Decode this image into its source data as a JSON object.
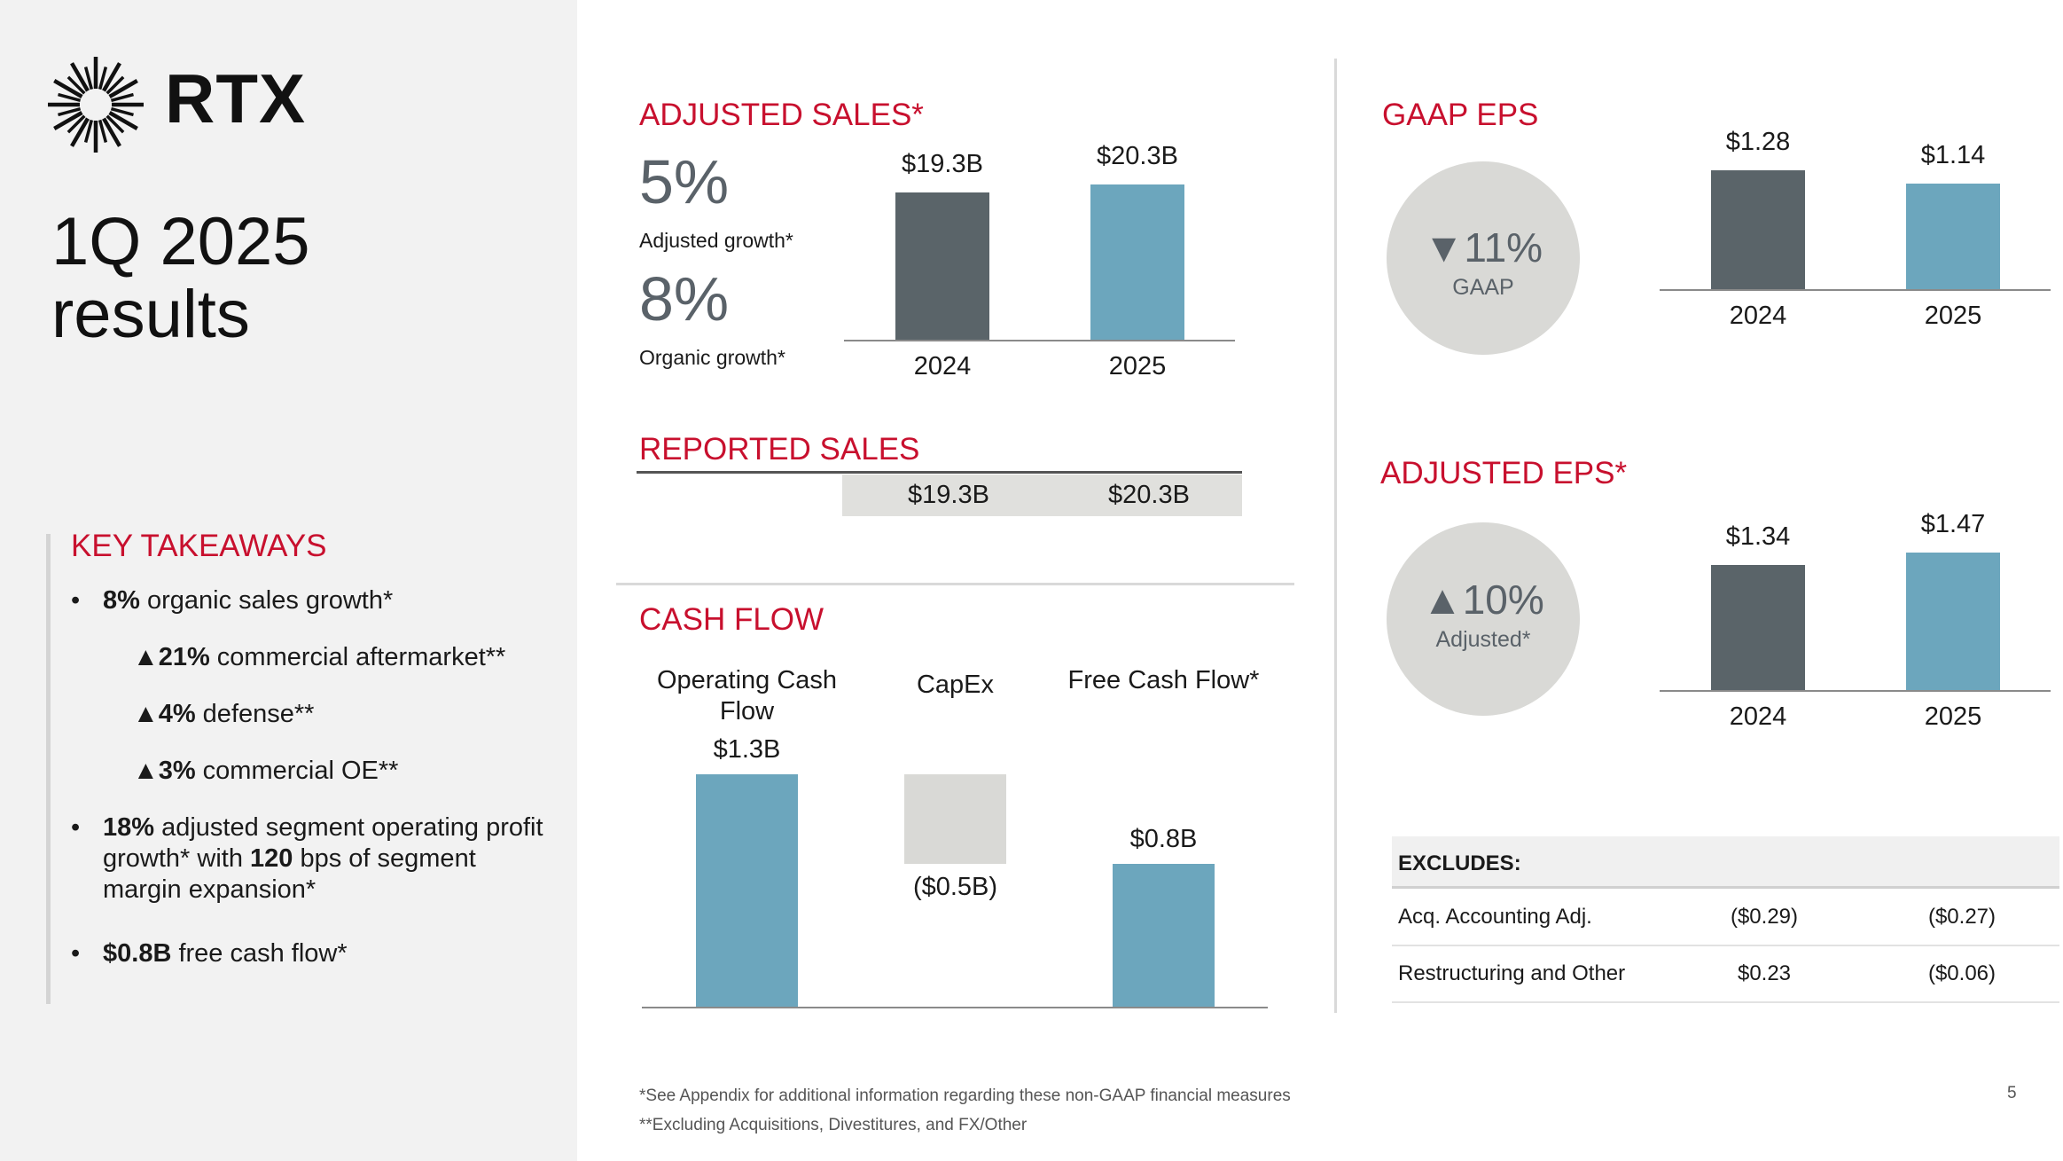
{
  "brand": {
    "logo_text": "RTX",
    "accent": "#c8102e",
    "icon": "rtx-sunburst-icon"
  },
  "title": {
    "line1": "1Q 2025",
    "line2": "results"
  },
  "takeaways": {
    "heading": "KEY TAKEAWAYS",
    "item1": {
      "bold": "8%",
      "rest": " organic sales growth*"
    },
    "sub1": {
      "arrow": "▲",
      "bold": "21%",
      "rest": " commercial aftermarket**"
    },
    "sub2": {
      "arrow": "▲",
      "bold": "4%",
      "rest": " defense**"
    },
    "sub3": {
      "arrow": "▲",
      "bold": "3%",
      "rest": " commercial OE**"
    },
    "item2": {
      "bold1": "18%",
      "mid": " adjusted segment operating profit growth* with ",
      "bold2": "120",
      "rest": " bps of segment margin expansion*"
    },
    "item3": {
      "bold": "$0.8B",
      "rest": " free cash flow*"
    },
    "bullet": "•"
  },
  "adjusted_sales": {
    "heading": "ADJUSTED SALES*",
    "pct1": "5%",
    "pct1_label": "Adjusted growth*",
    "pct2": "8%",
    "pct2_label": "Organic growth*"
  },
  "reported_sales": {
    "heading": "REPORTED SALES",
    "v2024": "$19.3B",
    "v2025": "$20.3B"
  },
  "cash_flow": {
    "heading": "CASH FLOW"
  },
  "gaap_eps": {
    "heading": "GAAP EPS",
    "circle_value": "▼11%",
    "circle_label": "GAAP"
  },
  "adjusted_eps": {
    "heading": "ADJUSTED EPS*",
    "circle_value": "▲10%",
    "circle_label": "Adjusted*"
  },
  "excludes": {
    "heading": "EXCLUDES:",
    "rows": [
      {
        "label": "Acq. Accounting Adj.",
        "v2024": "($0.29)",
        "v2025": "($0.27)"
      },
      {
        "label": "Restructuring and Other",
        "v2024": "$0.23",
        "v2025": "($0.06)"
      }
    ]
  },
  "footnotes": {
    "note1": "*See Appendix for additional information regarding these non-GAAP financial measures",
    "note2": "**Excluding Acquisitions, Divestitures, and FX/Other"
  },
  "page_number": "5",
  "colors": {
    "dark_bar": "#5a6469",
    "blue_bar": "#6ca6bd",
    "capex_bar": "#d9d9d6"
  },
  "chart_data": [
    {
      "type": "bar",
      "title": "ADJUSTED SALES*",
      "categories": [
        "2024",
        "2025"
      ],
      "values": [
        19.3,
        20.3
      ],
      "value_labels": [
        "$19.3B",
        "$20.3B"
      ],
      "unit": "$B"
    },
    {
      "type": "bar",
      "title": "CASH FLOW",
      "categories": [
        "Operating Cash Flow",
        "CapEx",
        "Free Cash Flow*"
      ],
      "values": [
        1.3,
        -0.5,
        0.8
      ],
      "value_labels": [
        "$1.3B",
        "($0.5B)",
        "$0.8B"
      ],
      "unit": "$B"
    },
    {
      "type": "bar",
      "title": "GAAP EPS",
      "categories": [
        "2024",
        "2025"
      ],
      "values": [
        1.28,
        1.14
      ],
      "value_labels": [
        "$1.28",
        "$1.14"
      ]
    },
    {
      "type": "bar",
      "title": "ADJUSTED EPS*",
      "categories": [
        "2024",
        "2025"
      ],
      "values": [
        1.34,
        1.47
      ],
      "value_labels": [
        "$1.34",
        "$1.47"
      ]
    }
  ]
}
